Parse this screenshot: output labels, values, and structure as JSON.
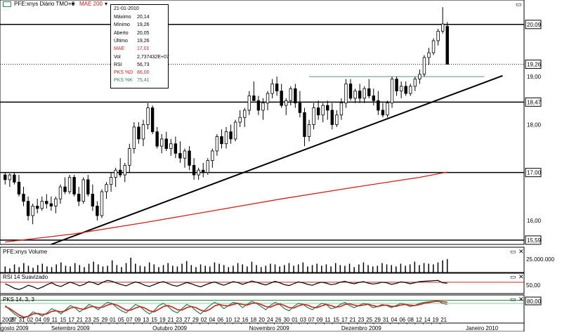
{
  "legend": {
    "instrument": "PFE:xnys Diário TMO+0",
    "indicator": "MAE 200",
    "dropdown_glyph": "▾",
    "symbol_color": "#2e8b57"
  },
  "info_box": {
    "date": "21-01-2010",
    "rows": [
      {
        "label": "Máximo",
        "value": "20,14",
        "color": "#000000"
      },
      {
        "label": "Mínimo",
        "value": "19,26",
        "color": "#000000"
      },
      {
        "label": "Aberto",
        "value": "20,05",
        "color": "#000000"
      },
      {
        "label": "Último",
        "value": "19,26",
        "color": "#000000"
      },
      {
        "label": "MAE",
        "value": "17,01",
        "color": "#d02020"
      },
      {
        "label": "Vol",
        "value": "2,737432E+07",
        "color": "#000000"
      },
      {
        "label": "RSI",
        "value": "56,73",
        "color": "#000000"
      },
      {
        "label": "PKS %D",
        "value": "86,00",
        "color": "#d02020"
      },
      {
        "label": "PKS %K",
        "value": "75,41",
        "color": "#2e8b57"
      }
    ]
  },
  "panels": {
    "volume_title": "PFE:xnys Volume",
    "volume_tick": "25.000.000",
    "rsi_title": "RSI 14 Suavizado",
    "rsi_tick": "50,00",
    "stoch_title": "PKS 14, 3, 3",
    "stoch_tick": "80,00",
    "close_glyph": "✕",
    "maximize_glyph": "▭"
  },
  "colors": {
    "up_candle": "#ffffff",
    "down_candle": "#000000",
    "mae": "#d02020",
    "resistance": "#99b4a8",
    "stoch_d": "#d02020",
    "stoch_k": "#2e8b57",
    "rsi_band": "#d02020",
    "stoch_band": "#2e8b57",
    "last_price_box": "#000000"
  },
  "chart_data": {
    "type": "candlestick",
    "ylim": [
      15.5,
      20.6
    ],
    "y_ticks": [
      "20,09",
      "19,26",
      "19,00",
      "18,47",
      "18,00",
      "17,00",
      "16,00",
      "15,59"
    ],
    "y_tick_values": [
      20.09,
      19.26,
      19.0,
      18.47,
      18.0,
      17.0,
      16.0,
      15.59
    ],
    "horizontal_levels": [
      20.09,
      18.47,
      17.0,
      15.59
    ],
    "last_price": 19.26,
    "trendline": {
      "from": {
        "x": 10,
        "y": 15.5
      },
      "to": {
        "x": 108,
        "y": 19.02
      }
    },
    "resistance_line": {
      "from": {
        "x": 66,
        "y": 19.0
      },
      "to": {
        "x": 104,
        "y": 19.0
      }
    },
    "x_day_labels": [
      "2009",
      "27",
      "31",
      "02",
      "04",
      "09",
      "11",
      "15",
      "17",
      "21",
      "23",
      "25",
      "29",
      "01",
      "05",
      "07",
      "09",
      "13",
      "15",
      "19",
      "21",
      "23",
      "27",
      "29",
      "02",
      "04",
      "06",
      "10",
      "12",
      "16",
      "18",
      "20",
      "24",
      "26",
      "30",
      "01",
      "03",
      "07",
      "09",
      "11",
      "15",
      "17",
      "21",
      "23",
      "25",
      "29",
      "31",
      "04",
      "06",
      "08",
      "12",
      "14",
      "19",
      "21"
    ],
    "x_month_labels": [
      {
        "text": "gosto 2009",
        "at": 0
      },
      {
        "text": "Setembro 2009",
        "at": 10
      },
      {
        "text": "Outubro 2009",
        "at": 32
      },
      {
        "text": "Novembro 2009",
        "at": 53
      },
      {
        "text": "Dezembro 2009",
        "at": 73
      },
      {
        "text": "Janeiro 2010",
        "at": 100
      }
    ],
    "candles": [
      {
        "o": 16.95,
        "h": 17.0,
        "l": 16.75,
        "c": 16.85
      },
      {
        "o": 16.85,
        "h": 16.98,
        "l": 16.7,
        "c": 16.95
      },
      {
        "o": 16.95,
        "h": 17.0,
        "l": 16.75,
        "c": 16.8
      },
      {
        "o": 16.8,
        "h": 16.95,
        "l": 16.5,
        "c": 16.55
      },
      {
        "o": 16.55,
        "h": 16.7,
        "l": 16.3,
        "c": 16.4
      },
      {
        "o": 16.4,
        "h": 16.5,
        "l": 16.0,
        "c": 16.1
      },
      {
        "o": 16.1,
        "h": 16.35,
        "l": 15.92,
        "c": 16.3
      },
      {
        "o": 16.3,
        "h": 16.45,
        "l": 16.15,
        "c": 16.25
      },
      {
        "o": 16.25,
        "h": 16.5,
        "l": 16.2,
        "c": 16.4
      },
      {
        "o": 16.4,
        "h": 16.55,
        "l": 16.25,
        "c": 16.35
      },
      {
        "o": 16.35,
        "h": 16.5,
        "l": 16.2,
        "c": 16.3
      },
      {
        "o": 16.3,
        "h": 16.5,
        "l": 16.15,
        "c": 16.45
      },
      {
        "o": 16.45,
        "h": 16.75,
        "l": 16.35,
        "c": 16.7
      },
      {
        "o": 16.7,
        "h": 16.9,
        "l": 16.55,
        "c": 16.6
      },
      {
        "o": 16.6,
        "h": 16.95,
        "l": 16.55,
        "c": 16.9
      },
      {
        "o": 16.9,
        "h": 16.95,
        "l": 16.5,
        "c": 16.55
      },
      {
        "o": 16.55,
        "h": 16.7,
        "l": 16.3,
        "c": 16.4
      },
      {
        "o": 16.4,
        "h": 16.9,
        "l": 16.35,
        "c": 16.85
      },
      {
        "o": 16.85,
        "h": 16.95,
        "l": 16.5,
        "c": 16.55
      },
      {
        "o": 16.55,
        "h": 16.75,
        "l": 16.2,
        "c": 16.3
      },
      {
        "o": 16.3,
        "h": 16.4,
        "l": 16.0,
        "c": 16.1
      },
      {
        "o": 16.1,
        "h": 16.65,
        "l": 16.05,
        "c": 16.6
      },
      {
        "o": 16.6,
        "h": 16.8,
        "l": 16.45,
        "c": 16.75
      },
      {
        "o": 16.75,
        "h": 17.0,
        "l": 16.6,
        "c": 16.9
      },
      {
        "o": 16.9,
        "h": 17.1,
        "l": 16.7,
        "c": 17.05
      },
      {
        "o": 17.05,
        "h": 17.3,
        "l": 16.9,
        "c": 16.95
      },
      {
        "o": 16.95,
        "h": 17.2,
        "l": 16.8,
        "c": 17.15
      },
      {
        "o": 17.15,
        "h": 17.6,
        "l": 17.0,
        "c": 17.5
      },
      {
        "o": 17.5,
        "h": 18.05,
        "l": 17.4,
        "c": 17.95
      },
      {
        "o": 17.95,
        "h": 18.05,
        "l": 17.6,
        "c": 17.7
      },
      {
        "o": 17.7,
        "h": 18.1,
        "l": 17.55,
        "c": 18.0
      },
      {
        "o": 18.0,
        "h": 18.45,
        "l": 17.9,
        "c": 18.35
      },
      {
        "o": 18.35,
        "h": 18.4,
        "l": 17.8,
        "c": 17.85
      },
      {
        "o": 17.85,
        "h": 17.95,
        "l": 17.5,
        "c": 17.55
      },
      {
        "o": 17.55,
        "h": 17.8,
        "l": 17.4,
        "c": 17.7
      },
      {
        "o": 17.7,
        "h": 17.85,
        "l": 17.45,
        "c": 17.5
      },
      {
        "o": 17.5,
        "h": 17.7,
        "l": 17.35,
        "c": 17.6
      },
      {
        "o": 17.6,
        "h": 17.75,
        "l": 17.3,
        "c": 17.4
      },
      {
        "o": 17.4,
        "h": 17.65,
        "l": 17.2,
        "c": 17.3
      },
      {
        "o": 17.3,
        "h": 17.5,
        "l": 17.1,
        "c": 17.45
      },
      {
        "o": 17.45,
        "h": 17.55,
        "l": 17.05,
        "c": 17.15
      },
      {
        "o": 17.15,
        "h": 17.3,
        "l": 16.85,
        "c": 16.95
      },
      {
        "o": 16.95,
        "h": 17.1,
        "l": 16.85,
        "c": 17.05
      },
      {
        "o": 17.05,
        "h": 17.2,
        "l": 16.9,
        "c": 17.0
      },
      {
        "o": 17.0,
        "h": 17.3,
        "l": 16.95,
        "c": 17.25
      },
      {
        "o": 17.25,
        "h": 17.5,
        "l": 17.1,
        "c": 17.45
      },
      {
        "o": 17.45,
        "h": 17.8,
        "l": 17.35,
        "c": 17.75
      },
      {
        "o": 17.75,
        "h": 17.9,
        "l": 17.5,
        "c": 17.6
      },
      {
        "o": 17.6,
        "h": 17.95,
        "l": 17.5,
        "c": 17.85
      },
      {
        "o": 17.85,
        "h": 18.0,
        "l": 17.6,
        "c": 17.7
      },
      {
        "o": 17.7,
        "h": 18.1,
        "l": 17.65,
        "c": 18.05
      },
      {
        "o": 18.05,
        "h": 18.3,
        "l": 17.95,
        "c": 18.15
      },
      {
        "o": 18.15,
        "h": 18.35,
        "l": 17.95,
        "c": 18.3
      },
      {
        "o": 18.3,
        "h": 18.7,
        "l": 18.2,
        "c": 18.6
      },
      {
        "o": 18.6,
        "h": 18.9,
        "l": 18.5,
        "c": 18.5
      },
      {
        "o": 18.5,
        "h": 18.6,
        "l": 18.2,
        "c": 18.3
      },
      {
        "o": 18.3,
        "h": 18.55,
        "l": 18.1,
        "c": 18.45
      },
      {
        "o": 18.45,
        "h": 18.7,
        "l": 18.3,
        "c": 18.65
      },
      {
        "o": 18.65,
        "h": 18.95,
        "l": 18.55,
        "c": 18.85
      },
      {
        "o": 18.85,
        "h": 19.0,
        "l": 18.6,
        "c": 18.7
      },
      {
        "o": 18.7,
        "h": 18.85,
        "l": 18.35,
        "c": 18.4
      },
      {
        "o": 18.4,
        "h": 18.55,
        "l": 18.2,
        "c": 18.5
      },
      {
        "o": 18.5,
        "h": 18.8,
        "l": 18.4,
        "c": 18.75
      },
      {
        "o": 18.75,
        "h": 18.85,
        "l": 18.35,
        "c": 18.45
      },
      {
        "o": 18.45,
        "h": 18.7,
        "l": 18.15,
        "c": 18.25
      },
      {
        "o": 18.25,
        "h": 18.35,
        "l": 17.55,
        "c": 17.75
      },
      {
        "o": 17.75,
        "h": 18.1,
        "l": 17.65,
        "c": 18.0
      },
      {
        "o": 18.0,
        "h": 18.45,
        "l": 17.9,
        "c": 18.35
      },
      {
        "o": 18.35,
        "h": 18.5,
        "l": 18.1,
        "c": 18.2
      },
      {
        "o": 18.2,
        "h": 18.45,
        "l": 18.05,
        "c": 18.4
      },
      {
        "o": 18.4,
        "h": 18.5,
        "l": 18.1,
        "c": 18.3
      },
      {
        "o": 18.3,
        "h": 18.45,
        "l": 17.9,
        "c": 18.0
      },
      {
        "o": 18.0,
        "h": 18.3,
        "l": 17.95,
        "c": 18.2
      },
      {
        "o": 18.2,
        "h": 18.55,
        "l": 18.1,
        "c": 18.45
      },
      {
        "o": 18.45,
        "h": 18.95,
        "l": 18.35,
        "c": 18.85
      },
      {
        "o": 18.85,
        "h": 18.95,
        "l": 18.5,
        "c": 18.55
      },
      {
        "o": 18.55,
        "h": 18.75,
        "l": 18.45,
        "c": 18.7
      },
      {
        "o": 18.7,
        "h": 18.85,
        "l": 18.45,
        "c": 18.55
      },
      {
        "o": 18.55,
        "h": 18.8,
        "l": 18.45,
        "c": 18.75
      },
      {
        "o": 18.75,
        "h": 18.95,
        "l": 18.55,
        "c": 18.6
      },
      {
        "o": 18.6,
        "h": 18.75,
        "l": 18.4,
        "c": 18.5
      },
      {
        "o": 18.5,
        "h": 18.7,
        "l": 18.2,
        "c": 18.3
      },
      {
        "o": 18.3,
        "h": 18.45,
        "l": 18.15,
        "c": 18.2
      },
      {
        "o": 18.2,
        "h": 18.5,
        "l": 18.15,
        "c": 18.45
      },
      {
        "o": 18.45,
        "h": 19.0,
        "l": 18.35,
        "c": 18.95
      },
      {
        "o": 18.95,
        "h": 19.0,
        "l": 18.6,
        "c": 18.7
      },
      {
        "o": 18.7,
        "h": 18.9,
        "l": 18.55,
        "c": 18.8
      },
      {
        "o": 18.8,
        "h": 18.9,
        "l": 18.6,
        "c": 18.65
      },
      {
        "o": 18.65,
        "h": 18.85,
        "l": 18.6,
        "c": 18.8
      },
      {
        "o": 18.8,
        "h": 19.0,
        "l": 18.7,
        "c": 18.95
      },
      {
        "o": 18.95,
        "h": 19.15,
        "l": 18.85,
        "c": 19.05
      },
      {
        "o": 19.05,
        "h": 19.45,
        "l": 19.0,
        "c": 19.4
      },
      {
        "o": 19.4,
        "h": 19.6,
        "l": 19.25,
        "c": 19.5
      },
      {
        "o": 19.5,
        "h": 19.8,
        "l": 19.45,
        "c": 19.75
      },
      {
        "o": 19.75,
        "h": 20.0,
        "l": 19.65,
        "c": 19.95
      },
      {
        "o": 19.95,
        "h": 20.45,
        "l": 19.9,
        "c": 20.1
      },
      {
        "o": 20.05,
        "h": 20.14,
        "l": 19.26,
        "c": 19.26
      }
    ],
    "mae": {
      "x": [
        0,
        15,
        30,
        45,
        60,
        75,
        90,
        96
      ],
      "y": [
        15.55,
        15.72,
        15.95,
        16.2,
        16.45,
        16.68,
        16.9,
        17.01
      ]
    },
    "volume": [
      9,
      6,
      12,
      8,
      14,
      10,
      7,
      11,
      13,
      9,
      8,
      12,
      15,
      10,
      9,
      14,
      11,
      8,
      13,
      16,
      12,
      9,
      10,
      18,
      11,
      8,
      14,
      22,
      13,
      10,
      9,
      15,
      12,
      8,
      11,
      14,
      10,
      9,
      13,
      17,
      11,
      8,
      12,
      10,
      9,
      15,
      13,
      11,
      8,
      10,
      14,
      12,
      9,
      16,
      11,
      8,
      10,
      13,
      12,
      9,
      11,
      14,
      10,
      12,
      15,
      9,
      11,
      13,
      10,
      12,
      9,
      14,
      11,
      10,
      13,
      8,
      12,
      15,
      11,
      9,
      10,
      14,
      12,
      11,
      9,
      13,
      10,
      12,
      16,
      11,
      14,
      13,
      12,
      15,
      18,
      20
    ],
    "volume_max": 25000000,
    "rsi": {
      "y": [
        55,
        48,
        40,
        36,
        42,
        50,
        45,
        38,
        44,
        52,
        58,
        50,
        46,
        54,
        60,
        55,
        48,
        53,
        62,
        58,
        52,
        60,
        66,
        63,
        57,
        52,
        48,
        55,
        61,
        57,
        50,
        46,
        52,
        58,
        62,
        56,
        50,
        47,
        53,
        59,
        55,
        49,
        45,
        51,
        57,
        61,
        55,
        50,
        56,
        62,
        59,
        53,
        58,
        64,
        60,
        55,
        51,
        57,
        63,
        58,
        52,
        49,
        55,
        61,
        58,
        53,
        50,
        56,
        60,
        57,
        52,
        54,
        60,
        63,
        58,
        55,
        59,
        62,
        57,
        54,
        56,
        60,
        58,
        53,
        56,
        61,
        59,
        55,
        58,
        62,
        63,
        64,
        65,
        66,
        58,
        56.73
      ],
      "band": 50
    },
    "stoch_k": [
      70,
      50,
      30,
      15,
      10,
      20,
      40,
      30,
      20,
      35,
      55,
      45,
      30,
      50,
      70,
      60,
      40,
      55,
      75,
      65,
      50,
      70,
      85,
      80,
      60,
      45,
      35,
      55,
      75,
      65,
      45,
      30,
      45,
      70,
      80,
      65,
      45,
      35,
      55,
      75,
      65,
      45,
      30,
      50,
      70,
      85,
      75,
      55,
      70,
      85,
      80,
      60,
      75,
      90,
      80,
      65,
      50,
      70,
      85,
      75,
      55,
      45,
      65,
      80,
      75,
      60,
      50,
      65,
      80,
      75,
      55,
      60,
      75,
      85,
      70,
      60,
      70,
      80,
      75,
      60,
      65,
      75,
      70,
      60,
      70,
      80,
      75,
      65,
      70,
      80,
      85,
      88,
      90,
      92,
      80,
      75.41
    ],
    "stoch_d": [
      65,
      55,
      40,
      25,
      15,
      18,
      30,
      32,
      28,
      30,
      42,
      45,
      40,
      45,
      58,
      62,
      55,
      52,
      62,
      65,
      60,
      62,
      72,
      78,
      72,
      60,
      48,
      48,
      58,
      65,
      58,
      45,
      40,
      52,
      65,
      70,
      62,
      50,
      48,
      60,
      65,
      60,
      48,
      42,
      52,
      68,
      75,
      70,
      68,
      75,
      80,
      75,
      72,
      80,
      82,
      75,
      65,
      62,
      72,
      78,
      70,
      60,
      58,
      68,
      75,
      72,
      62,
      60,
      68,
      75,
      70,
      62,
      65,
      75,
      78,
      72,
      68,
      72,
      76,
      70,
      65,
      70,
      72,
      66,
      66,
      72,
      75,
      72,
      70,
      74,
      80,
      84,
      88,
      90,
      88,
      86.0
    ],
    "stoch_band": 80
  }
}
